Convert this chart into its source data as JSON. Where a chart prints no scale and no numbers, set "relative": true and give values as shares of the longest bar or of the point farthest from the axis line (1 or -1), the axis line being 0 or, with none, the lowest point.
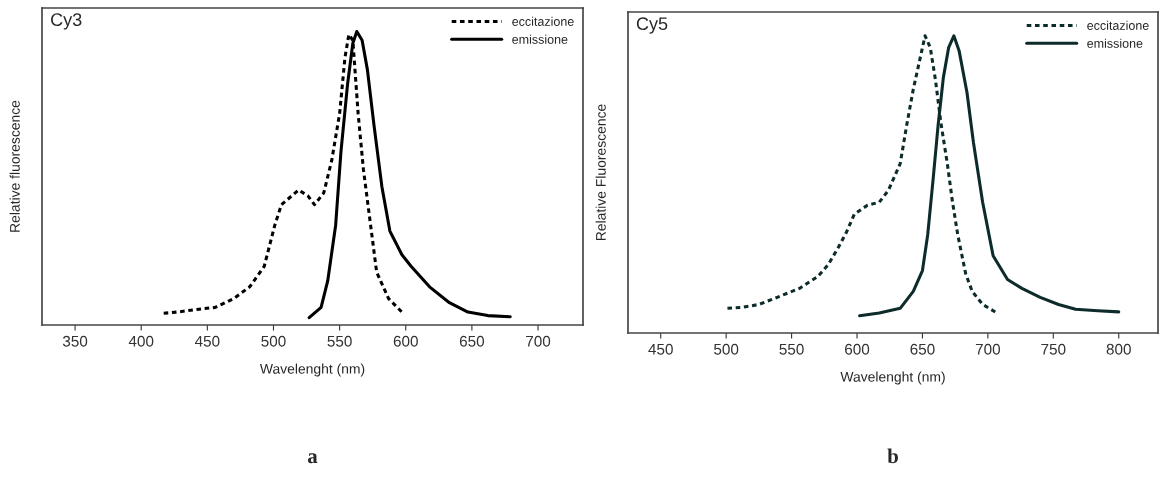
{
  "chart_data": [
    {
      "type": "line",
      "title": "Cy3",
      "xlabel": "Wavelenght (nm)",
      "ylabel": "Relative fluorescence",
      "relative": true,
      "xlim": [
        325,
        734
      ],
      "xticks": [
        350,
        400,
        450,
        500,
        550,
        600,
        650,
        700
      ],
      "tick_labels": "x",
      "grid": false,
      "legend": "top right",
      "annotations": [
        "a"
      ],
      "series": [
        {
          "name": "eccitazione",
          "color": "#000000",
          "line_style": "dotted",
          "x": [
            417,
            427,
            442,
            456,
            470,
            482,
            493,
            501,
            506,
            519,
            526,
            531,
            538,
            544,
            550,
            554,
            557,
            560,
            564,
            568,
            574,
            578,
            587,
            598
          ],
          "values": [
            0.04,
            0.044,
            0.053,
            0.06,
            0.09,
            0.13,
            0.2,
            0.34,
            0.41,
            0.46,
            0.44,
            0.41,
            0.45,
            0.56,
            0.72,
            0.91,
            0.99,
            0.97,
            0.72,
            0.53,
            0.32,
            0.18,
            0.09,
            0.04
          ]
        },
        {
          "name": "emissione",
          "color": "#000000",
          "line_style": "solid",
          "x": [
            527,
            536,
            541,
            547,
            551,
            556,
            560,
            563,
            567,
            571,
            576,
            582,
            588,
            597,
            604,
            618,
            633,
            647,
            662,
            679
          ],
          "values": [
            0.025,
            0.06,
            0.15,
            0.34,
            0.59,
            0.82,
            0.96,
            1.0,
            0.97,
            0.87,
            0.68,
            0.47,
            0.32,
            0.24,
            0.2,
            0.13,
            0.076,
            0.044,
            0.032,
            0.028
          ]
        }
      ]
    },
    {
      "type": "line",
      "title": "Cy5",
      "xlabel": "Wavelenght (nm)",
      "ylabel": "Relative Fluorescence",
      "relative": true,
      "xlim": [
        425,
        830
      ],
      "xticks": [
        450,
        500,
        550,
        600,
        650,
        700,
        750,
        800
      ],
      "tick_labels": "x",
      "grid": false,
      "legend": "top right",
      "annotations": [
        "b"
      ],
      "series": [
        {
          "name": "eccitazione",
          "color": "#0d2b2b",
          "line_style": "dotted",
          "x": [
            501,
            512,
            525,
            539,
            556,
            570,
            578,
            586,
            592,
            598,
            608,
            617,
            624,
            633,
            638,
            643,
            648,
            652,
            656,
            660,
            664,
            669,
            673,
            677,
            683,
            688,
            696,
            707
          ],
          "values": [
            0.083,
            0.086,
            0.096,
            0.12,
            0.15,
            0.19,
            0.23,
            0.29,
            0.34,
            0.4,
            0.43,
            0.44,
            0.48,
            0.57,
            0.7,
            0.82,
            0.92,
            1.0,
            0.96,
            0.85,
            0.71,
            0.57,
            0.44,
            0.33,
            0.2,
            0.14,
            0.096,
            0.067
          ]
        },
        {
          "name": "emissione",
          "color": "#0d2b2b",
          "line_style": "solid",
          "x": [
            602,
            617,
            633,
            643,
            650,
            654,
            658,
            662,
            666,
            670,
            674,
            678,
            684,
            689,
            696,
            704,
            715,
            726,
            740,
            754,
            767,
            784,
            800
          ],
          "values": [
            0.058,
            0.067,
            0.083,
            0.14,
            0.21,
            0.33,
            0.51,
            0.7,
            0.86,
            0.96,
            1.0,
            0.95,
            0.81,
            0.64,
            0.44,
            0.26,
            0.18,
            0.15,
            0.12,
            0.096,
            0.08,
            0.075,
            0.071
          ]
        }
      ]
    }
  ]
}
